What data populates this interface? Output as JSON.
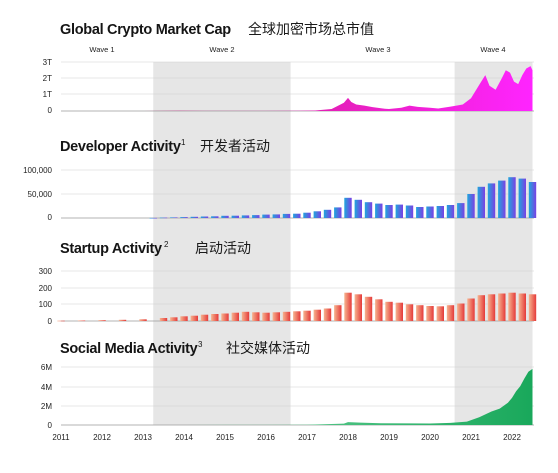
{
  "waves": [
    "Wave 1",
    "Wave 2",
    "Wave 3",
    "Wave 4"
  ],
  "x_axis_ticks": [
    "2011",
    "2012",
    "2013",
    "2014",
    "2015",
    "2016",
    "2017",
    "2018",
    "2019",
    "2020",
    "2021",
    "2022"
  ],
  "colors": {
    "shade": "#e6e6e6",
    "market_cap": [
      "#c2185b",
      "#ff24ff"
    ],
    "developer": [
      "#1fa7dc",
      "#7b3fe4"
    ],
    "startup": [
      "#f6b48f",
      "#e53a3a"
    ],
    "social": [
      "#8fe3b4",
      "#19a85b"
    ]
  },
  "chart_data": [
    {
      "type": "area",
      "title": "Global Crypto Market Cap",
      "title_zh": "全球加密市场总市值",
      "ylim": [
        0,
        3
      ],
      "yticks": [
        "3T",
        "2T",
        "1T",
        "0"
      ],
      "shaded_periods": [
        [
          2013.25,
          2016.6
        ],
        [
          2020.6,
          2022.5
        ]
      ],
      "points": [
        [
          2011,
          0
        ],
        [
          2012,
          0
        ],
        [
          2013,
          0.001
        ],
        [
          2013.9,
          0.012
        ],
        [
          2014.5,
          0.008
        ],
        [
          2015.5,
          0.005
        ],
        [
          2016,
          0.009
        ],
        [
          2016.8,
          0.016
        ],
        [
          2017.2,
          0.03
        ],
        [
          2017.6,
          0.12
        ],
        [
          2017.9,
          0.5
        ],
        [
          2018.0,
          0.8
        ],
        [
          2018.08,
          0.55
        ],
        [
          2018.2,
          0.4
        ],
        [
          2018.4,
          0.33
        ],
        [
          2018.6,
          0.24
        ],
        [
          2018.9,
          0.14
        ],
        [
          2019.0,
          0.12
        ],
        [
          2019.3,
          0.2
        ],
        [
          2019.5,
          0.33
        ],
        [
          2019.7,
          0.25
        ],
        [
          2020.0,
          0.2
        ],
        [
          2020.2,
          0.15
        ],
        [
          2020.5,
          0.27
        ],
        [
          2020.8,
          0.4
        ],
        [
          2021.0,
          0.78
        ],
        [
          2021.2,
          1.6
        ],
        [
          2021.35,
          2.2
        ],
        [
          2021.45,
          1.55
        ],
        [
          2021.6,
          1.3
        ],
        [
          2021.75,
          2.0
        ],
        [
          2021.85,
          2.5
        ],
        [
          2021.95,
          2.35
        ],
        [
          2022.05,
          1.8
        ],
        [
          2022.15,
          1.65
        ],
        [
          2022.25,
          2.2
        ],
        [
          2022.35,
          2.6
        ],
        [
          2022.45,
          2.75
        ],
        [
          2022.5,
          2.5
        ]
      ]
    },
    {
      "type": "bar",
      "title": "Developer Activity",
      "title_sup": "1",
      "title_zh": "开发者活动",
      "ylim": [
        0,
        100000
      ],
      "yticks": [
        "100,000",
        "50,000",
        "0"
      ],
      "points": [
        [
          2013.25,
          200
        ],
        [
          2013.5,
          800
        ],
        [
          2013.75,
          1200
        ],
        [
          2014.0,
          1800
        ],
        [
          2014.25,
          2500
        ],
        [
          2014.5,
          3200
        ],
        [
          2014.75,
          3500
        ],
        [
          2015.0,
          4500
        ],
        [
          2015.25,
          4800
        ],
        [
          2015.5,
          5500
        ],
        [
          2015.75,
          6000
        ],
        [
          2016.0,
          7000
        ],
        [
          2016.25,
          7500
        ],
        [
          2016.5,
          8500
        ],
        [
          2016.75,
          9000
        ],
        [
          2017.0,
          11000
        ],
        [
          2017.25,
          14000
        ],
        [
          2017.5,
          17000
        ],
        [
          2017.75,
          22000
        ],
        [
          2018.0,
          42000
        ],
        [
          2018.25,
          38000
        ],
        [
          2018.5,
          33000
        ],
        [
          2018.75,
          30000
        ],
        [
          2019.0,
          27000
        ],
        [
          2019.25,
          28000
        ],
        [
          2019.5,
          26000
        ],
        [
          2019.75,
          23000
        ],
        [
          2020.0,
          24000
        ],
        [
          2020.25,
          25000
        ],
        [
          2020.5,
          27000
        ],
        [
          2020.75,
          31000
        ],
        [
          2021.0,
          50000
        ],
        [
          2021.25,
          65000
        ],
        [
          2021.5,
          72000
        ],
        [
          2021.75,
          78000
        ],
        [
          2022.0,
          85000
        ],
        [
          2022.25,
          82000
        ],
        [
          2022.5,
          75000
        ]
      ]
    },
    {
      "type": "bar",
      "title": "Startup Activity",
      "title_sup": "2",
      "title_zh": "启动活动",
      "ylim": [
        0,
        300
      ],
      "yticks": [
        "300",
        "200",
        "100",
        "0"
      ],
      "points": [
        [
          2011.0,
          2
        ],
        [
          2011.5,
          3
        ],
        [
          2012.0,
          5
        ],
        [
          2012.5,
          7
        ],
        [
          2013.0,
          10
        ],
        [
          2013.5,
          18
        ],
        [
          2013.75,
          22
        ],
        [
          2014.0,
          28
        ],
        [
          2014.25,
          32
        ],
        [
          2014.5,
          38
        ],
        [
          2014.75,
          42
        ],
        [
          2015.0,
          45
        ],
        [
          2015.25,
          50
        ],
        [
          2015.5,
          55
        ],
        [
          2015.75,
          52
        ],
        [
          2016.0,
          50
        ],
        [
          2016.25,
          52
        ],
        [
          2016.5,
          55
        ],
        [
          2016.75,
          58
        ],
        [
          2017.0,
          62
        ],
        [
          2017.25,
          68
        ],
        [
          2017.5,
          75
        ],
        [
          2017.75,
          95
        ],
        [
          2018.0,
          170
        ],
        [
          2018.25,
          160
        ],
        [
          2018.5,
          145
        ],
        [
          2018.75,
          130
        ],
        [
          2019.0,
          115
        ],
        [
          2019.25,
          110
        ],
        [
          2019.5,
          100
        ],
        [
          2019.75,
          95
        ],
        [
          2020.0,
          90
        ],
        [
          2020.25,
          88
        ],
        [
          2020.5,
          95
        ],
        [
          2020.75,
          105
        ],
        [
          2021.0,
          135
        ],
        [
          2021.25,
          155
        ],
        [
          2021.5,
          160
        ],
        [
          2021.75,
          165
        ],
        [
          2022.0,
          170
        ],
        [
          2022.25,
          165
        ],
        [
          2022.5,
          160
        ]
      ]
    },
    {
      "type": "area",
      "title": "Social Media Activity",
      "title_sup": "3",
      "title_zh": "社交媒体活动",
      "ylim": [
        0,
        6000000
      ],
      "yticks": [
        "6M",
        "4M",
        "2M",
        "0"
      ],
      "points": [
        [
          2011,
          0
        ],
        [
          2013,
          0
        ],
        [
          2014,
          5000
        ],
        [
          2015,
          10000
        ],
        [
          2016,
          15000
        ],
        [
          2017,
          30000
        ],
        [
          2017.9,
          150000
        ],
        [
          2018.0,
          300000
        ],
        [
          2018.3,
          250000
        ],
        [
          2018.8,
          180000
        ],
        [
          2019.5,
          170000
        ],
        [
          2020.0,
          160000
        ],
        [
          2020.5,
          220000
        ],
        [
          2020.9,
          350000
        ],
        [
          2021.2,
          800000
        ],
        [
          2021.5,
          1400000
        ],
        [
          2021.7,
          1700000
        ],
        [
          2021.9,
          2300000
        ],
        [
          2022.0,
          2800000
        ],
        [
          2022.1,
          3500000
        ],
        [
          2022.2,
          4000000
        ],
        [
          2022.3,
          4800000
        ],
        [
          2022.4,
          5500000
        ],
        [
          2022.5,
          5800000
        ]
      ]
    }
  ]
}
